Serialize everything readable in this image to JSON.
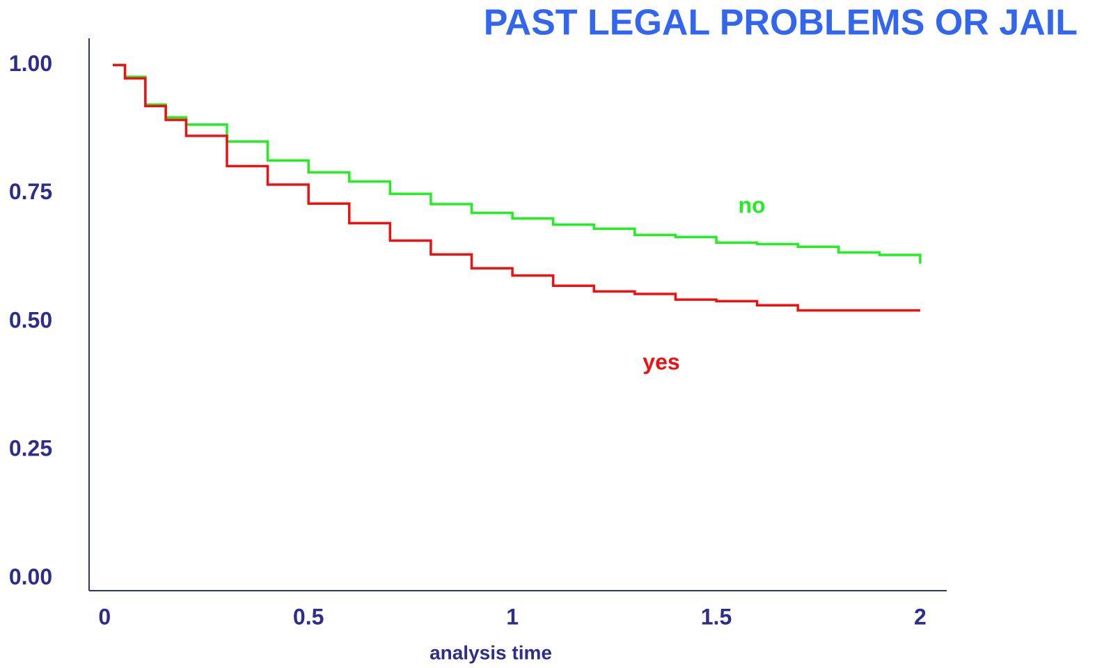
{
  "chart_data": {
    "type": "line",
    "step": true,
    "title": "PAST LEGAL PROBLEMS OR JAIL",
    "x_label": "analysis time",
    "x": [
      0.02,
      0.05,
      0.1,
      0.15,
      0.2,
      0.3,
      0.4,
      0.5,
      0.6,
      0.7,
      0.8,
      0.9,
      1.0,
      1.1,
      1.2,
      1.3,
      1.4,
      1.5,
      1.6,
      1.7,
      1.8,
      1.9,
      2.0
    ],
    "series": [
      {
        "name": "no",
        "color": "#22ee22",
        "values": [
          1.0,
          0.977,
          0.923,
          0.898,
          0.884,
          0.851,
          0.814,
          0.791,
          0.773,
          0.749,
          0.729,
          0.712,
          0.701,
          0.689,
          0.681,
          0.669,
          0.665,
          0.654,
          0.651,
          0.646,
          0.635,
          0.63,
          0.613
        ]
      },
      {
        "name": "yes",
        "color": "#ee1111",
        "values": [
          1.0,
          0.974,
          0.92,
          0.893,
          0.862,
          0.803,
          0.767,
          0.73,
          0.692,
          0.658,
          0.631,
          0.604,
          0.59,
          0.57,
          0.559,
          0.554,
          0.543,
          0.54,
          0.532,
          0.522,
          0.522,
          0.522,
          0.522
        ]
      }
    ],
    "xlim": [
      -0.038,
      2.065
    ],
    "ylim": [
      -0.024,
      1.052
    ],
    "xticks": [
      0,
      0.5,
      1,
      1.5,
      2
    ],
    "yticks": [
      {
        "value": 0,
        "label": "0.00"
      },
      {
        "value": 0.25,
        "label": "0.25"
      },
      {
        "value": 0.5,
        "label": "0.50"
      },
      {
        "value": 0.75,
        "label": "0.75"
      },
      {
        "value": 1,
        "label": "1.00"
      }
    ],
    "grid": false
  }
}
